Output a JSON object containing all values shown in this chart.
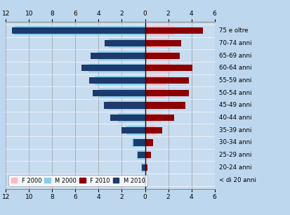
{
  "categories": [
    "< di 20 anni",
    "20-24 anni",
    "25-29 anni",
    "30-34 anni",
    "35-39 anni",
    "40-44 anni",
    "45-49 anni",
    "50-54 anni",
    "55-59 anni",
    "60-64 anni",
    "65-69 anni",
    "70-74 anni",
    "75 e oltre"
  ],
  "M2000": [
    0.12,
    0.35,
    0.7,
    1.1,
    1.6,
    2.35,
    3.2,
    3.9,
    4.3,
    4.9,
    4.1,
    3.1,
    11.3
  ],
  "M2010": [
    0.15,
    0.3,
    0.65,
    1.0,
    2.0,
    3.0,
    3.55,
    4.5,
    4.8,
    5.5,
    4.7,
    3.5,
    11.5
  ],
  "F2000": [
    0.05,
    0.18,
    0.4,
    0.65,
    1.0,
    1.4,
    1.65,
    1.8,
    1.85,
    2.3,
    2.3,
    2.1,
    2.5
  ],
  "F2010": [
    0.05,
    0.2,
    0.5,
    0.7,
    1.5,
    2.5,
    3.5,
    3.8,
    3.8,
    4.1,
    3.0,
    3.1,
    5.0
  ],
  "color_F2000": "#FFB6C1",
  "color_M2000": "#87CEEB",
  "color_F2010": "#8B0000",
  "color_M2010": "#1C3A6B",
  "bg_color": "#BDD7EE",
  "plot_bg": "#C8DCF0",
  "xtick_vals": [
    -12,
    -10,
    -8,
    -6,
    -4,
    -2,
    0,
    2,
    4,
    6
  ],
  "xtick_labels": [
    "12",
    "10",
    "8",
    "6",
    "4",
    "2",
    "0",
    "2",
    "4",
    "6"
  ]
}
